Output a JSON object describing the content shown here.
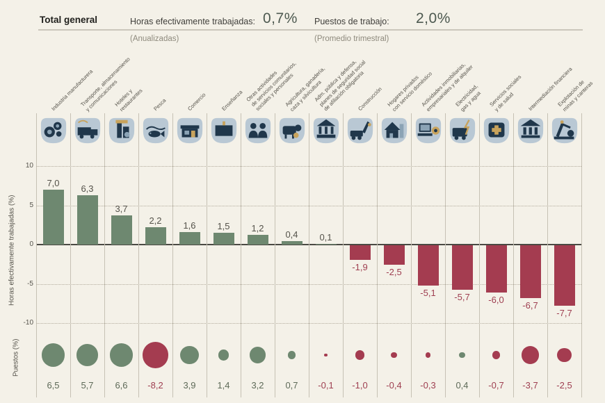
{
  "header": {
    "total_label": "Total general",
    "hours_label": "Horas efectivamente trabajadas:",
    "hours_value": "0,7%",
    "hours_sub": "(Anualizadas)",
    "jobs_label": "Puestos de trabajo:",
    "jobs_value": "2,0%",
    "jobs_sub": "(Promedio trimestral)"
  },
  "axes": {
    "bar_ylabel": "Horas efectivamente trabajadas (%)",
    "bubble_ylabel": "Puestos (%)",
    "ticks": [
      10,
      5,
      0,
      -5,
      -10
    ]
  },
  "chart_data": {
    "type": "bar",
    "title": "Total general",
    "categories": [
      "Industria manufacturera",
      "Transporte, almacenamiento\ny comunicaciones",
      "Hoteles y\nrestaurantes",
      "Pesca",
      "Comercio",
      "Enseñanza",
      "Otras actividades\nde servicios comunitarios,\nsociales y personales",
      "Agricultura, ganadería,\ncaza y silvicultura",
      "Adm. pública y defensa,\nplanes de seguridad social\nde afiliación obligatoria",
      "Construcción",
      "Hogares privados\ncon servicio doméstico",
      "Actividades inmobiliarias,\nempresariales y de alquiler",
      "Electricidad,\ngas y agua",
      "Servicios sociales\ny de salud",
      "Intermediación financiera",
      "Explotación de\nminas y canteras"
    ],
    "icons": [
      "gears-icon",
      "truck-icon",
      "hotel-icon",
      "fish-icon",
      "storefront-icon",
      "book-icon",
      "community-icon",
      "cow-icon",
      "government-icon",
      "excavator-icon",
      "house-icon",
      "computer-icon",
      "power-icon",
      "health-icon",
      "bank-icon",
      "oil-pump-icon"
    ],
    "series": [
      {
        "name": "Horas efectivamente trabajadas (%)",
        "values": [
          7.0,
          6.3,
          3.7,
          2.2,
          1.6,
          1.5,
          1.2,
          0.4,
          0.1,
          -1.9,
          -2.5,
          -5.1,
          -5.7,
          -6.0,
          -6.7,
          -7.7
        ],
        "labels": [
          "7,0",
          "6,3",
          "3,7",
          "2,2",
          "1,6",
          "1,5",
          "1,2",
          "0,4",
          "0,1",
          "-1,9",
          "-2,5",
          "-5,1",
          "-5,7",
          "-6,0",
          "-6,7",
          "-7,7"
        ]
      },
      {
        "name": "Puestos (%)",
        "values": [
          6.5,
          5.7,
          6.6,
          -8.2,
          3.9,
          1.4,
          3.2,
          0.7,
          -0.1,
          -1.0,
          -0.4,
          -0.3,
          0.4,
          -0.7,
          -3.7,
          -2.5
        ],
        "labels": [
          "6,5",
          "5,7",
          "6,6",
          "-8,2",
          "3,9",
          "1,4",
          "3,2",
          "0,7",
          "-0,1",
          "-1,0",
          "-0,4",
          "-0,3",
          "0,4",
          "-0,7",
          "-3,7",
          "-2,5"
        ]
      }
    ],
    "ylim": [
      -10,
      10
    ],
    "grid": true,
    "colors": {
      "positive": "#6e8870",
      "negative": "#a43c50"
    }
  }
}
